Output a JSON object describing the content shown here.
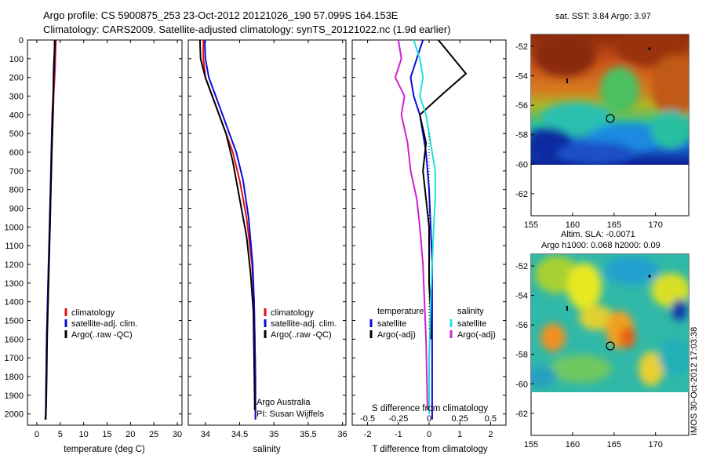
{
  "header": {
    "line1": "Argo profile: CS 5900875_253 23-Oct-2012 20121026_190 57.099S 164.153E",
    "line2": "Climatology: CARS2009. Satellite-adjusted climatology: synTS_20121022.nc (1.9d earlier)"
  },
  "colors": {
    "climatology": "#e01010",
    "satellite": "#0a0ad8",
    "argo": "#000000",
    "sal_satellite": "#20e0e0",
    "sal_argo": "#d020d0"
  },
  "map_icons": [
    "small-dot-marker",
    "short-line-marker",
    "profile-circle-marker"
  ],
  "chart_data": [
    {
      "type": "line",
      "panel": "temperature",
      "xlabel": "temperature (deg C)",
      "ylabel": "",
      "xlim": [
        -2,
        31
      ],
      "ylim": [
        2060,
        0
      ],
      "xticks": [
        0,
        5,
        10,
        15,
        20,
        25,
        30
      ],
      "yticks": [
        0,
        100,
        200,
        300,
        400,
        500,
        600,
        700,
        800,
        900,
        1000,
        1100,
        1200,
        1300,
        1400,
        1500,
        1600,
        1700,
        1800,
        1900,
        2000
      ],
      "legend": [
        "climatology",
        "satellite-adj. clim.",
        "Argo(..raw -QC)"
      ],
      "legend_position": "center",
      "series": [
        {
          "name": "climatology",
          "color": "#e01010",
          "x": [
            4.1,
            4.0,
            3.9,
            3.6,
            3.5,
            3.2,
            3.0,
            2.8,
            2.5,
            2.3,
            2.1,
            2.0,
            1.9,
            1.8
          ],
          "y": [
            0,
            50,
            150,
            300,
            400,
            600,
            800,
            1000,
            1200,
            1400,
            1600,
            1800,
            2000,
            2030
          ]
        },
        {
          "name": "satellite-adj. clim.",
          "color": "#0a0ad8",
          "x": [
            3.9,
            3.8,
            3.7,
            3.5,
            3.3,
            3.1,
            2.9,
            2.7,
            2.5,
            2.3,
            2.1,
            2.0,
            1.9,
            1.8
          ],
          "y": [
            0,
            50,
            150,
            300,
            400,
            600,
            800,
            1000,
            1200,
            1400,
            1600,
            1800,
            2000,
            2030
          ]
        },
        {
          "name": "Argo(..raw -QC)",
          "color": "#000000",
          "x": [
            3.8,
            3.8,
            3.6,
            3.5,
            3.4,
            3.2,
            3.0,
            2.8,
            2.6,
            2.4,
            2.2,
            2.1,
            2.0,
            1.9
          ],
          "y": [
            0,
            50,
            150,
            300,
            400,
            600,
            800,
            1000,
            1200,
            1400,
            1600,
            1800,
            1950,
            2030
          ]
        }
      ]
    },
    {
      "type": "line",
      "panel": "salinity",
      "xlabel": "salinity",
      "ylabel": "",
      "xlim": [
        33.75,
        36.05
      ],
      "ylim": [
        2060,
        0
      ],
      "xticks": [
        34,
        34.5,
        35,
        35.5,
        36
      ],
      "legend": [
        "climatology",
        "satellite-adj. clim.",
        "Argo(..raw -QC)"
      ],
      "legend_position": "lower-right",
      "annotations": [
        "Argo Australia",
        "PI: Susan Wijffels"
      ],
      "series": [
        {
          "name": "climatology",
          "color": "#e01010",
          "x": [
            33.97,
            33.97,
            34.0,
            34.1,
            34.2,
            34.3,
            34.4,
            34.5,
            34.6,
            34.68,
            34.71,
            34.72,
            34.73,
            34.73
          ],
          "y": [
            0,
            100,
            200,
            300,
            400,
            500,
            600,
            750,
            950,
            1200,
            1400,
            1600,
            1800,
            2030
          ]
        },
        {
          "name": "satellite-adj. clim.",
          "color": "#0a0ad8",
          "x": [
            33.99,
            34.0,
            34.05,
            34.15,
            34.25,
            34.35,
            34.45,
            34.55,
            34.63,
            34.69,
            34.71,
            34.72,
            34.73,
            34.73
          ],
          "y": [
            0,
            100,
            200,
            300,
            400,
            500,
            600,
            750,
            950,
            1200,
            1400,
            1600,
            1800,
            2030
          ]
        },
        {
          "name": "Argo(..raw -QC)",
          "color": "#000000",
          "x": [
            33.92,
            33.93,
            34.0,
            34.1,
            34.2,
            34.3,
            34.4,
            34.5,
            34.6,
            34.66,
            34.7,
            34.71,
            34.72
          ],
          "y": [
            0,
            100,
            200,
            300,
            400,
            500,
            650,
            850,
            1050,
            1250,
            1450,
            1700,
            1980
          ]
        }
      ]
    },
    {
      "type": "line",
      "panel": "differences",
      "xlabel": "T difference from climatology",
      "xlabel2": "S difference from climatology",
      "ylabel": "",
      "xlim": [
        -2.5,
        2.5
      ],
      "ylim": [
        2060,
        0
      ],
      "xticks": [
        -2,
        -1,
        0,
        1,
        2
      ],
      "xticks_s": [
        "-0.5",
        "-0.25",
        "0",
        "0.25",
        "0.5"
      ],
      "legend_title_left": "temperature",
      "legend_title_right": "salinity",
      "legend": [
        "satellite",
        "Argo(-adj)",
        "satellite",
        "Argo(-adj)"
      ],
      "legend_position": "lower-center",
      "series": [
        {
          "name": "satellite",
          "group": "temperature",
          "color": "#0a0ad8",
          "x": [
            -0.2,
            -0.4,
            -0.6,
            -0.5,
            -0.3,
            -0.2,
            -0.1,
            0.0,
            0.05,
            0.1,
            0.1,
            0.1,
            0.1,
            0.1
          ],
          "y": [
            0,
            100,
            200,
            300,
            400,
            500,
            600,
            800,
            1000,
            1200,
            1400,
            1600,
            1800,
            2030
          ]
        },
        {
          "name": "Argo(-adj)",
          "group": "temperature",
          "color": "#000000",
          "x": [
            0.3,
            0.6,
            1.2,
            0.5,
            -0.3,
            -0.1,
            -0.2,
            -0.1,
            0.0,
            0.0,
            0.0,
            0.05,
            0.05
          ],
          "y": [
            0,
            60,
            180,
            280,
            400,
            550,
            700,
            850,
            1000,
            1150,
            1300,
            1450,
            1600
          ]
        },
        {
          "name": "satellite",
          "group": "salinity",
          "color": "#20e0e0",
          "x": [
            -0.5,
            -0.3,
            -0.2,
            -0.3,
            -0.1,
            0.0,
            0.1,
            0.2,
            0.2,
            0.15,
            0.1,
            0.05,
            0.0,
            0.0
          ],
          "y": [
            0,
            100,
            200,
            300,
            400,
            500,
            600,
            700,
            850,
            1000,
            1200,
            1400,
            1700,
            2000
          ]
        },
        {
          "name": "Argo(-adj)",
          "group": "salinity",
          "color": "#d020d0",
          "x": [
            -1.0,
            -0.9,
            -1.1,
            -0.8,
            -0.9,
            -0.7,
            -0.6,
            -0.4,
            -0.3,
            -0.2,
            -0.15,
            -0.1,
            -0.05
          ],
          "y": [
            0,
            100,
            200,
            300,
            400,
            550,
            700,
            850,
            1000,
            1200,
            1400,
            1600,
            1980
          ]
        }
      ]
    },
    {
      "type": "heatmap",
      "panel": "sst-map",
      "title": "sat. SST: 3.84 Argo: 3.97",
      "xlim": [
        155,
        174
      ],
      "ylim": [
        -63.5,
        -51.2
      ],
      "xticks": [
        155,
        160,
        165,
        170
      ],
      "yticks": [
        -52,
        -54,
        -56,
        -58,
        -60,
        -62
      ],
      "profile_location": [
        164.153,
        -57.099
      ]
    },
    {
      "type": "heatmap",
      "panel": "sla-map",
      "title": "Altim. SLA: -0.0071",
      "subtitle": "Argo h1000: 0.068 h2000: 0.09",
      "xlim": [
        155,
        174
      ],
      "ylim": [
        -63.5,
        -51.2
      ],
      "xticks": [
        155,
        160,
        165,
        170
      ],
      "yticks": [
        -52,
        -54,
        -56,
        -58,
        -60,
        -62
      ],
      "profile_location": [
        164.153,
        -57.099
      ]
    }
  ],
  "footer": {
    "imos_stamp": "IMOS 30-Oct-2012 17:03:38"
  }
}
